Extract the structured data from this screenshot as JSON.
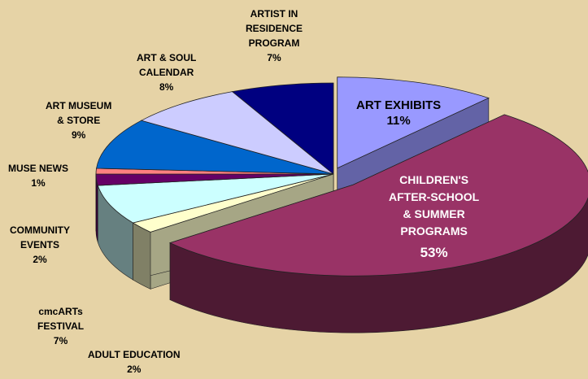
{
  "chart_data": {
    "type": "pie",
    "title": "",
    "slices": [
      {
        "name": "ART EXHIBITS",
        "value": 11,
        "label": "11%",
        "color": "#9999ff"
      },
      {
        "name": "CHILDREN'S\nAFTER-SCHOOL\n& SUMMER\nPROGRAMS",
        "value": 53,
        "label": "53%",
        "color": "#993366"
      },
      {
        "name": "ADULT EDUCATION",
        "value": 2,
        "label": "2%",
        "color": "#ffffcc"
      },
      {
        "name": "cmcARTs\nFESTIVAL",
        "value": 7,
        "label": "7%",
        "color": "#ccffff"
      },
      {
        "name": "COMMUNITY\nEVENTS",
        "value": 2,
        "label": "2%",
        "color": "#660066"
      },
      {
        "name": "MUSE NEWS",
        "value": 1,
        "label": "1%",
        "color": "#ff8080"
      },
      {
        "name": "ART MUSEUM\n& STORE",
        "value": 9,
        "label": "9%",
        "color": "#0066cc"
      },
      {
        "name": "ART & SOUL\nCALENDAR",
        "value": 8,
        "label": "8%",
        "color": "#ccccff"
      },
      {
        "name": "ARTIST IN\nRESIDENCE\nPROGRAM",
        "value": 7,
        "label": "7%",
        "color": "#000080"
      }
    ]
  }
}
